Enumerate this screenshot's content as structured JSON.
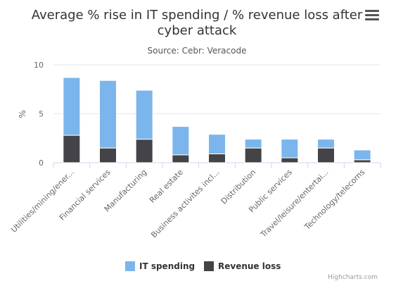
{
  "chart_data": {
    "type": "bar",
    "stacked": true,
    "title": "Average % rise in IT spending / % revenue loss after cyber attack",
    "title_lines": [
      "Average % rise in IT spending / % revenue loss after",
      "cyber attack"
    ],
    "subtitle": "Source: Cebr: Veracode",
    "xlabel": "",
    "ylabel": "%",
    "ylim": [
      0,
      10
    ],
    "yticks": [
      0,
      5,
      10
    ],
    "grid": true,
    "legend_position": "bottom",
    "categories": [
      "Utilities/mining/ener...",
      "Financial services",
      "Manufacturing",
      "Real estate",
      "Business activites incl...",
      "Distribution",
      "Public services",
      "Travel/leisure/entertai...",
      "Technology/telecoms"
    ],
    "series": [
      {
        "name": "IT spending",
        "color": "#7cb5ec",
        "values": [
          5.9,
          6.9,
          5.0,
          2.9,
          2.0,
          0.9,
          1.9,
          0.9,
          1.0
        ]
      },
      {
        "name": "Revenue loss",
        "color": "#434348",
        "values": [
          2.8,
          1.5,
          2.4,
          0.8,
          0.9,
          1.5,
          0.5,
          1.5,
          0.3
        ]
      }
    ]
  },
  "credits": "Highcharts.com",
  "menu_icon": "hamburger-menu-icon"
}
